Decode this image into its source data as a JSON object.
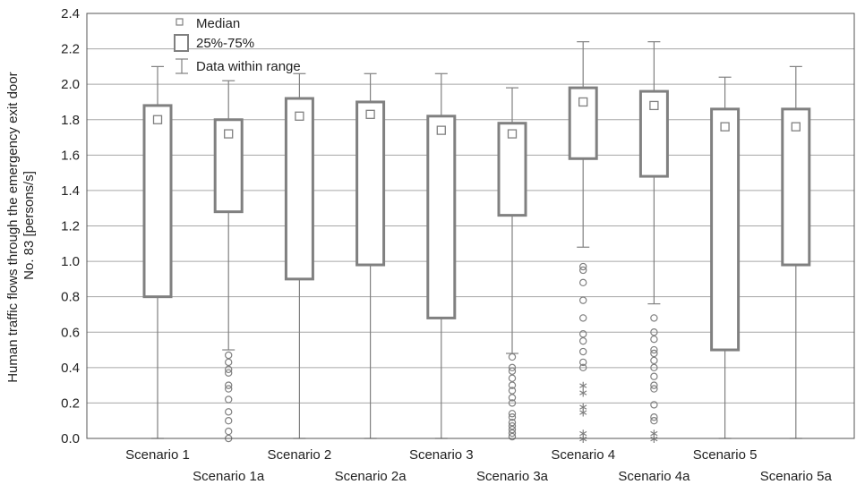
{
  "chart_data": {
    "type": "boxplot",
    "ylabel": "Human traffic flows through the emergency exit door No. 83 [persons/s]",
    "ylim": [
      0.0,
      2.4
    ],
    "yticks": [
      0.0,
      0.2,
      0.4,
      0.6,
      0.8,
      1.0,
      1.2,
      1.4,
      1.6,
      1.8,
      2.0,
      2.2,
      2.4
    ],
    "ytick_labels": [
      "0.0",
      "0.2",
      "0.4",
      "0.6",
      "0.8",
      "1.0",
      "1.2",
      "1.4",
      "1.6",
      "1.8",
      "2.0",
      "2.2",
      "2.4"
    ],
    "grid": true,
    "legend": {
      "placement": "top-left",
      "items": [
        {
          "symbol": "median",
          "label": "Median"
        },
        {
          "symbol": "box",
          "label": "25%-75%"
        },
        {
          "symbol": "whisker",
          "label": "Data within range"
        }
      ]
    },
    "colors": {
      "box": "#808080",
      "grid": "#a6a6a6",
      "outlier": "#808080"
    },
    "categories": [
      "Scenario 1",
      "Scenario 1a",
      "Scenario 2",
      "Scenario 2a",
      "Scenario 3",
      "Scenario 3a",
      "Scenario 4",
      "Scenario 4a",
      "Scenario 5",
      "Scenario 5a"
    ],
    "series": [
      {
        "category": "Scenario 1",
        "median": 1.8,
        "q1": 0.8,
        "q3": 1.88,
        "min": 0.0,
        "max": 2.1,
        "outliers": [],
        "extremes": []
      },
      {
        "category": "Scenario 1a",
        "median": 1.72,
        "q1": 1.28,
        "q3": 1.8,
        "min": 0.5,
        "max": 2.02,
        "outliers": [
          0.47,
          0.43,
          0.39,
          0.37,
          0.3,
          0.28,
          0.22,
          0.15,
          0.1,
          0.04,
          0.0
        ],
        "extremes": []
      },
      {
        "category": "Scenario 2",
        "median": 1.82,
        "q1": 0.9,
        "q3": 1.92,
        "min": 0.0,
        "max": 2.06,
        "outliers": [],
        "extremes": []
      },
      {
        "category": "Scenario 2a",
        "median": 1.83,
        "q1": 0.98,
        "q3": 1.9,
        "min": 0.0,
        "max": 2.06,
        "outliers": [],
        "extremes": []
      },
      {
        "category": "Scenario 3",
        "median": 1.74,
        "q1": 0.68,
        "q3": 1.82,
        "min": 0.0,
        "max": 2.06,
        "outliers": [],
        "extremes": []
      },
      {
        "category": "Scenario 3a",
        "median": 1.72,
        "q1": 1.26,
        "q3": 1.78,
        "min": 0.48,
        "max": 1.98,
        "outliers": [
          0.46,
          0.4,
          0.38,
          0.34,
          0.3,
          0.27,
          0.23,
          0.2,
          0.14,
          0.12,
          0.09,
          0.07,
          0.05,
          0.03,
          0.01
        ],
        "extremes": []
      },
      {
        "category": "Scenario 4",
        "median": 1.9,
        "q1": 1.58,
        "q3": 1.98,
        "min": 1.08,
        "max": 2.24,
        "outliers": [
          0.97,
          0.95,
          0.88,
          0.78,
          0.68,
          0.59,
          0.55,
          0.49,
          0.43,
          0.4
        ],
        "extremes": [
          0.3,
          0.26,
          0.18,
          0.15,
          0.03,
          0.0
        ]
      },
      {
        "category": "Scenario 4a",
        "median": 1.88,
        "q1": 1.48,
        "q3": 1.96,
        "min": 0.76,
        "max": 2.24,
        "outliers": [
          0.68,
          0.6,
          0.56,
          0.5,
          0.48,
          0.44,
          0.4,
          0.35,
          0.3,
          0.28,
          0.19,
          0.12,
          0.1
        ],
        "extremes": [
          0.03,
          0.0
        ]
      },
      {
        "category": "Scenario 5",
        "median": 1.76,
        "q1": 0.5,
        "q3": 1.86,
        "min": 0.0,
        "max": 2.04,
        "outliers": [],
        "extremes": []
      },
      {
        "category": "Scenario 5a",
        "median": 1.76,
        "q1": 0.98,
        "q3": 1.86,
        "min": 0.0,
        "max": 2.1,
        "outliers": [],
        "extremes": []
      }
    ]
  }
}
